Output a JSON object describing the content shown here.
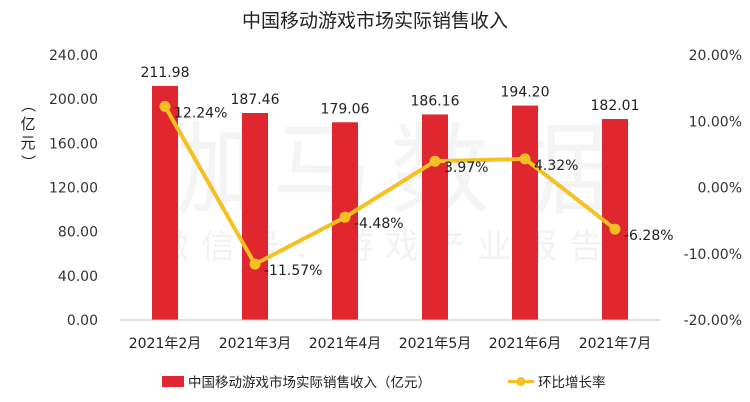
{
  "chart_data": {
    "type": "bar+line",
    "title": "中国移动游戏市场实际销售收入",
    "categories": [
      "2021年2月",
      "2021年3月",
      "2021年4月",
      "2021年5月",
      "2021年6月",
      "2021年7月"
    ],
    "series": [
      {
        "name": "中国移动游戏市场实际销售收入（亿元）",
        "type": "bar",
        "axis": "left",
        "color": "#e0262e",
        "values": [
          211.98,
          187.46,
          179.06,
          186.16,
          194.2,
          182.01
        ],
        "labels": [
          "211.98",
          "187.46",
          "179.06",
          "186.16",
          "194.20",
          "182.01"
        ]
      },
      {
        "name": "环比增长率",
        "type": "line",
        "axis": "right",
        "color": "#f5c022",
        "values": [
          12.24,
          -11.57,
          -4.48,
          3.97,
          4.32,
          -6.28
        ],
        "labels": [
          "12.24%",
          "-11.57%",
          "-4.48%",
          "3.97%",
          "4.32%",
          "-6.28%"
        ]
      }
    ],
    "y_left": {
      "label": "（亿元）",
      "ylim": [
        0,
        240
      ],
      "ticks": [
        0,
        40,
        80,
        120,
        160,
        200,
        240
      ],
      "tick_labels": [
        "0.00",
        "40.00",
        "80.00",
        "120.00",
        "160.00",
        "200.00",
        "240.00"
      ]
    },
    "y_right": {
      "ylim": [
        -20,
        20
      ],
      "ticks": [
        -20,
        -10,
        0,
        10,
        20
      ],
      "tick_labels": [
        "-20.00%",
        "-10.00%",
        "0.00%",
        "10.00%",
        "20.00%"
      ]
    },
    "grid": false,
    "legend_position": "bottom",
    "watermark": {
      "main": "伽马数据",
      "sub": "微信号：游戏产业报告"
    }
  }
}
